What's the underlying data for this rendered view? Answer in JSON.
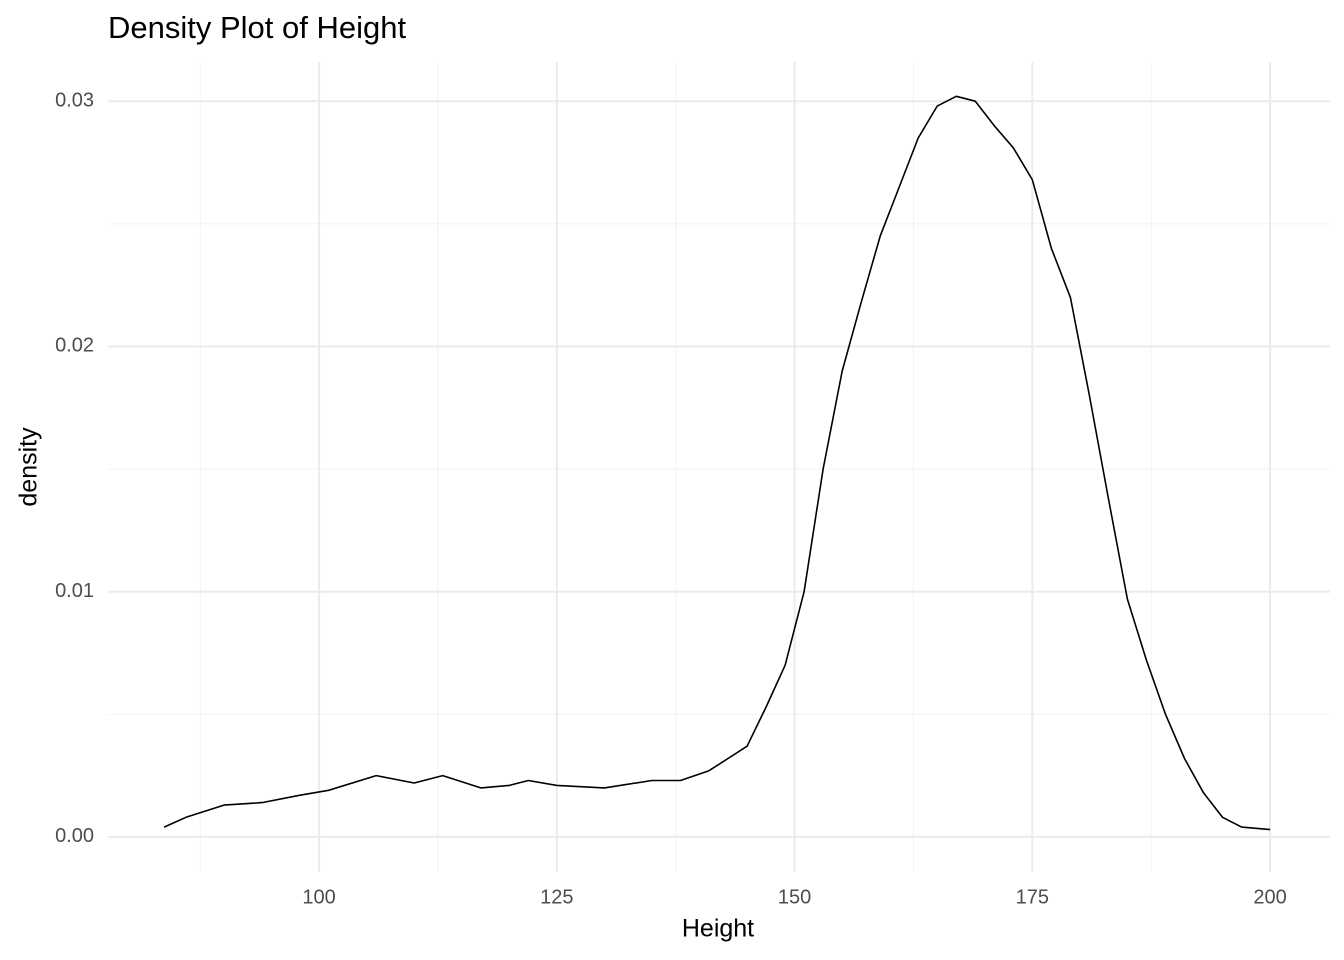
{
  "chart_data": {
    "type": "line",
    "title": "Density Plot of Height",
    "xlabel": "Height",
    "ylabel": "density",
    "x": [
      83.7,
      86,
      90,
      94,
      98,
      101,
      106,
      110,
      113,
      117,
      120,
      122,
      125,
      130,
      135,
      138,
      141,
      143,
      145,
      147,
      149,
      151,
      153,
      155,
      157,
      159,
      160,
      163,
      165,
      167,
      169,
      171,
      173,
      175,
      177,
      179,
      181,
      183,
      185,
      187,
      189,
      191,
      193,
      195,
      197,
      200
    ],
    "series": [
      {
        "name": "density",
        "color": "#000000",
        "values": [
          0.0004,
          0.0008,
          0.0013,
          0.0014,
          0.0017,
          0.0019,
          0.0025,
          0.0022,
          0.0025,
          0.002,
          0.0021,
          0.0023,
          0.0021,
          0.002,
          0.0023,
          0.0023,
          0.0027,
          0.0032,
          0.0037,
          0.0053,
          0.007,
          0.01,
          0.015,
          0.019,
          0.0218,
          0.0245,
          0.0255,
          0.0285,
          0.0298,
          0.0302,
          0.03,
          0.029,
          0.0281,
          0.0268,
          0.024,
          0.022,
          0.018,
          0.0138,
          0.0097,
          0.0072,
          0.005,
          0.0032,
          0.0018,
          0.0008,
          0.0004,
          0.0003
        ]
      }
    ],
    "xlim": [
      77.8,
      206.3
    ],
    "ylim": [
      -0.00143,
      0.0316
    ],
    "xticks": [
      100,
      125,
      150,
      175,
      200
    ],
    "yticks": [
      {
        "value": 0,
        "label": "0.00"
      },
      {
        "value": 0.01,
        "label": "0.01"
      },
      {
        "value": 0.02,
        "label": "0.02"
      },
      {
        "value": 0.03,
        "label": "0.03"
      }
    ],
    "xminor": [
      87.5,
      112.5,
      137.5,
      162.5,
      187.5
    ],
    "yminor": [
      0.005,
      0.015,
      0.025
    ],
    "grid": true
  }
}
